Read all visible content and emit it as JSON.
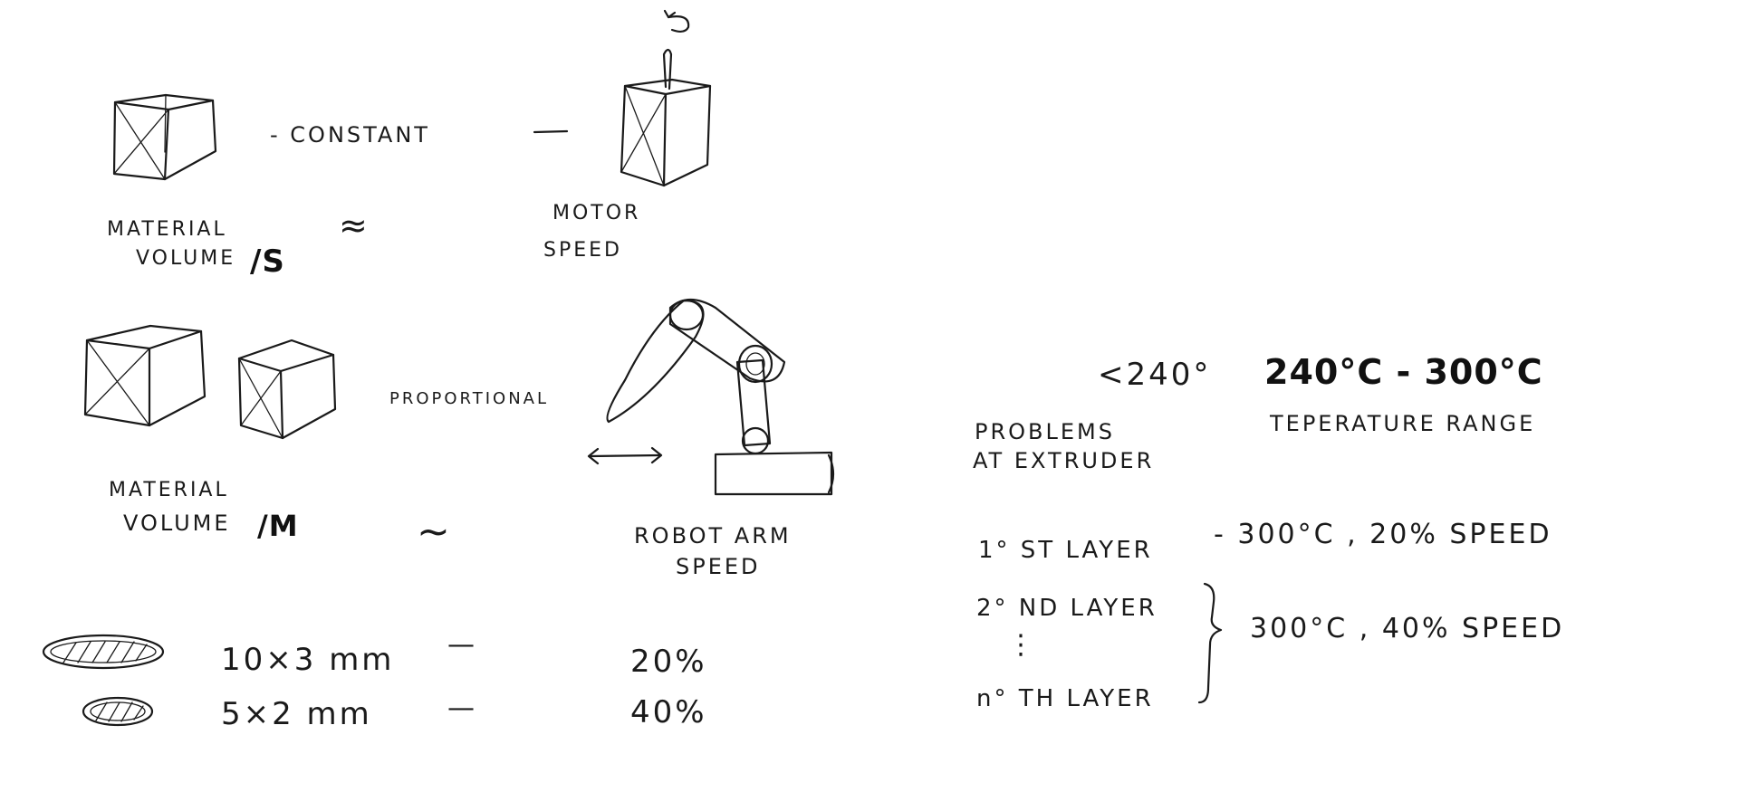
{
  "top_section": {
    "relation_1": "- CONSTANT",
    "label_material_s_line1": "MATERIAL",
    "label_material_s_line2": "VOLUME",
    "label_material_s_unit": "/S",
    "approx_symbol_1": "≈",
    "label_motor_line1": "MOTOR",
    "label_motor_line2": "SPEED"
  },
  "middle_section": {
    "relation_2": "PROPORTIONAL",
    "label_material_m_line1": "MATERIAL",
    "label_material_m_line2": "VOLUME",
    "label_material_m_unit": "/M",
    "approx_symbol_2": "~",
    "label_robot_line1": "ROBOT ARM",
    "label_robot_line2": "SPEED"
  },
  "bead_table": {
    "rows": [
      {
        "size": "10×3 mm",
        "dash": "—",
        "speed": "20%"
      },
      {
        "size": "5×2 mm",
        "dash": "—",
        "speed": "40%"
      }
    ]
  },
  "temperature": {
    "limit_low": "<240°",
    "problems_line1": "PROBLEMS",
    "problems_line2": "AT EXTRUDER",
    "range": "240°C - 300°C",
    "range_label": "TEPERATURE RANGE"
  },
  "layers": {
    "first_layer": "1° ST LAYER",
    "first_setting": "- 300°C , 20% SPEED",
    "second_layer": "2° ND LAYER",
    "dots": "⋮",
    "nth_layer": "n° TH LAYER",
    "rest_setting": "300°C , 40% SPEED"
  }
}
